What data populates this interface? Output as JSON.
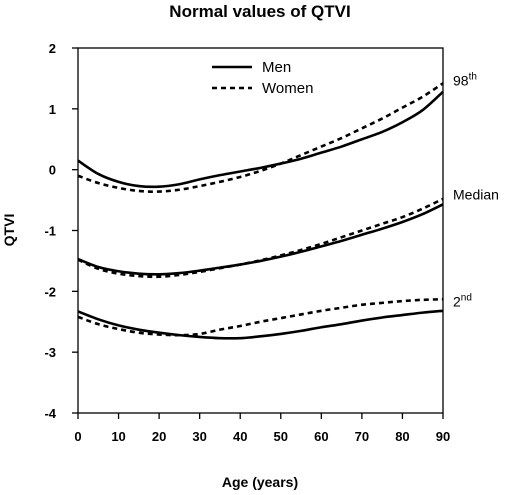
{
  "chart_data": {
    "type": "line",
    "title": "Normal values of QTVI",
    "xlabel": "Age (years)",
    "ylabel": "QTVI",
    "xlim": [
      0,
      90
    ],
    "ylim": [
      -4,
      2
    ],
    "xticks": [
      0,
      10,
      20,
      30,
      40,
      50,
      60,
      70,
      80,
      90
    ],
    "yticks": [
      -4,
      -3,
      -2,
      -1,
      0,
      1,
      2
    ],
    "grid": false,
    "legend": {
      "position": "top-center",
      "entries": [
        {
          "label": "Men",
          "style": "solid"
        },
        {
          "label": "Women",
          "style": "dashed"
        }
      ]
    },
    "annotations": [
      {
        "text": "98",
        "sup": "th",
        "x": 90,
        "y": 1.35
      },
      {
        "text": "Median",
        "sup": "",
        "x": 90,
        "y": -0.52
      },
      {
        "text": "2",
        "sup": "nd",
        "x": 90,
        "y": -2.28
      }
    ],
    "series": [
      {
        "name": "Men",
        "percentile": "98th",
        "style": "solid",
        "x": [
          0,
          5,
          10,
          15,
          20,
          25,
          30,
          35,
          40,
          45,
          50,
          55,
          60,
          65,
          70,
          75,
          80,
          85,
          90
        ],
        "y": [
          0.15,
          -0.07,
          -0.2,
          -0.27,
          -0.28,
          -0.24,
          -0.16,
          -0.09,
          -0.03,
          0.03,
          0.1,
          0.18,
          0.28,
          0.38,
          0.5,
          0.62,
          0.78,
          0.98,
          1.28
        ]
      },
      {
        "name": "Women",
        "percentile": "98th",
        "style": "dashed",
        "x": [
          0,
          5,
          10,
          15,
          20,
          25,
          30,
          35,
          40,
          45,
          50,
          55,
          60,
          65,
          70,
          75,
          80,
          85,
          90
        ],
        "y": [
          -0.1,
          -0.22,
          -0.3,
          -0.35,
          -0.36,
          -0.33,
          -0.27,
          -0.2,
          -0.12,
          -0.02,
          0.1,
          0.24,
          0.38,
          0.52,
          0.68,
          0.84,
          1.02,
          1.2,
          1.42
        ]
      },
      {
        "name": "Men",
        "percentile": "Median",
        "style": "solid",
        "x": [
          0,
          5,
          10,
          15,
          20,
          25,
          30,
          35,
          40,
          45,
          50,
          55,
          60,
          65,
          70,
          75,
          80,
          85,
          90
        ],
        "y": [
          -1.47,
          -1.6,
          -1.67,
          -1.71,
          -1.72,
          -1.7,
          -1.66,
          -1.61,
          -1.56,
          -1.5,
          -1.43,
          -1.35,
          -1.26,
          -1.17,
          -1.07,
          -0.97,
          -0.86,
          -0.73,
          -0.57
        ]
      },
      {
        "name": "Women",
        "percentile": "Median",
        "style": "dashed",
        "x": [
          0,
          5,
          10,
          15,
          20,
          25,
          30,
          35,
          40,
          45,
          50,
          55,
          60,
          65,
          70,
          75,
          80,
          85,
          90
        ],
        "y": [
          -1.48,
          -1.63,
          -1.71,
          -1.75,
          -1.76,
          -1.73,
          -1.68,
          -1.62,
          -1.56,
          -1.49,
          -1.41,
          -1.32,
          -1.22,
          -1.11,
          -1.0,
          -0.89,
          -0.78,
          -0.64,
          -0.48
        ]
      },
      {
        "name": "Men",
        "percentile": "2nd",
        "style": "solid",
        "x": [
          0,
          5,
          10,
          15,
          20,
          25,
          30,
          35,
          40,
          45,
          50,
          55,
          60,
          65,
          70,
          75,
          80,
          85,
          90
        ],
        "y": [
          -2.33,
          -2.46,
          -2.56,
          -2.63,
          -2.68,
          -2.72,
          -2.75,
          -2.77,
          -2.77,
          -2.74,
          -2.7,
          -2.65,
          -2.59,
          -2.54,
          -2.48,
          -2.43,
          -2.39,
          -2.35,
          -2.32
        ]
      },
      {
        "name": "Women",
        "percentile": "2nd",
        "style": "dashed",
        "x": [
          0,
          5,
          10,
          15,
          20,
          25,
          30,
          35,
          40,
          45,
          50,
          55,
          60,
          65,
          70,
          75,
          80,
          85,
          90
        ],
        "y": [
          -2.42,
          -2.54,
          -2.62,
          -2.68,
          -2.71,
          -2.72,
          -2.7,
          -2.63,
          -2.57,
          -2.5,
          -2.44,
          -2.38,
          -2.32,
          -2.27,
          -2.22,
          -2.19,
          -2.16,
          -2.14,
          -2.13
        ]
      }
    ]
  }
}
